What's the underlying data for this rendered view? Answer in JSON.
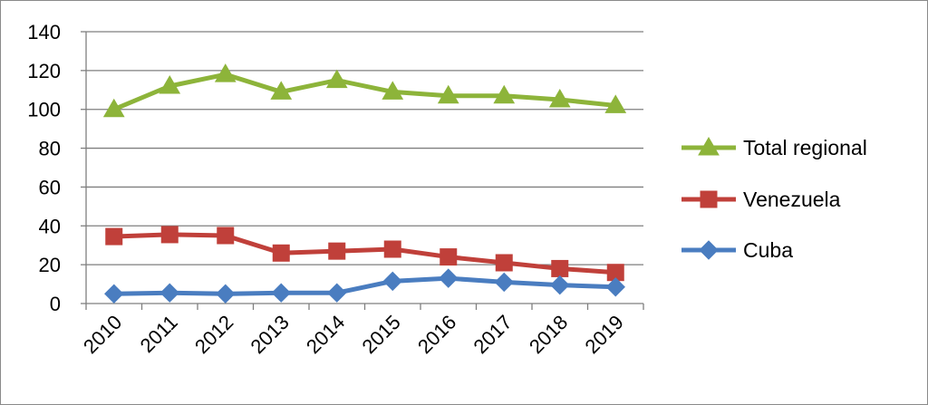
{
  "chart_data": {
    "type": "line",
    "categories": [
      "2010",
      "2011",
      "2012",
      "2013",
      "2014",
      "2015",
      "2016",
      "2017",
      "2018",
      "2019"
    ],
    "ylim": [
      0,
      140
    ],
    "yticks": [
      0,
      20,
      40,
      60,
      80,
      100,
      120,
      140
    ],
    "grid": true,
    "legend_position": "right",
    "series": [
      {
        "name": "Total regional",
        "color": "#8DB43A",
        "marker": "triangle",
        "values": [
          100,
          112,
          118,
          109,
          115,
          109,
          107,
          107,
          105,
          102
        ]
      },
      {
        "name": "Venezuela",
        "color": "#C0403A",
        "marker": "square",
        "values": [
          34.5,
          35.5,
          35,
          26,
          27,
          28,
          24,
          21,
          18,
          16
        ]
      },
      {
        "name": "Cuba",
        "color": "#4A7DC0",
        "marker": "diamond",
        "values": [
          5,
          5.5,
          5,
          5.5,
          5.5,
          11.5,
          13,
          11,
          9.5,
          8.5
        ]
      }
    ]
  }
}
